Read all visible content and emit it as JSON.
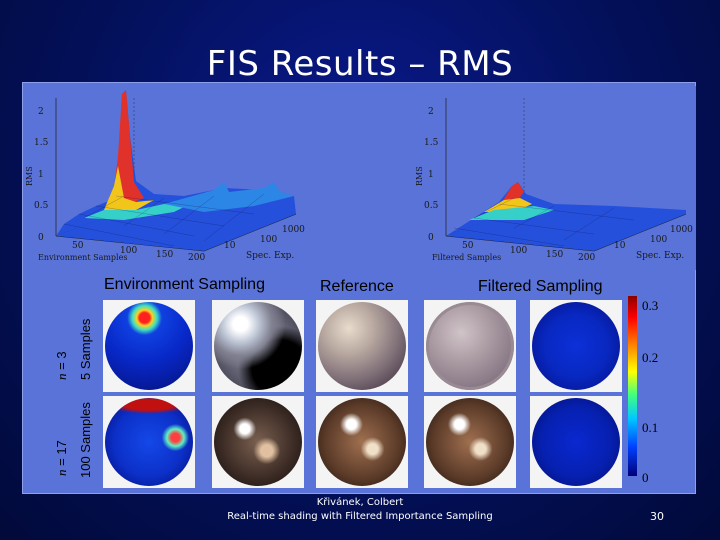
{
  "slide": {
    "title": "FIS Results – RMS",
    "page_number": "30",
    "footer_authors": "Křivánek, Colbert",
    "footer_paper": "Real-time shading with Filtered Importance Sampling"
  },
  "plots": {
    "left": {
      "zlabel": "RMS",
      "z_ticks": [
        "0",
        "0.5",
        "1",
        "1.5",
        "2"
      ],
      "x_label": "Environment Samples",
      "x_ticks": [
        "50",
        "100",
        "150",
        "200"
      ],
      "y_label": "Spec. Exp.",
      "y_ticks": [
        "10",
        "100",
        "1000"
      ]
    },
    "right": {
      "zlabel": "RMS",
      "z_ticks": [
        "0",
        "0.5",
        "1",
        "1.5",
        "2"
      ],
      "x_label": "Filtered Samples",
      "x_ticks": [
        "50",
        "100",
        "150",
        "200"
      ],
      "y_label": "Spec. Exp.",
      "y_ticks": [
        "10",
        "100",
        "1000"
      ]
    }
  },
  "columns": {
    "env": "Environment Sampling",
    "ref": "Reference",
    "filtered": "Filtered Sampling"
  },
  "rows": {
    "row1_n": "n",
    "row1_eq": " = 3",
    "row1_samples": "5 Samples",
    "row2_n": "n",
    "row2_eq": " = 17",
    "row2_samples": "100 Samples"
  },
  "colorbar": {
    "ticks": [
      "0.3",
      "0.2",
      "0.1",
      "0"
    ]
  },
  "colors": {
    "panel": "#5a73d8",
    "slide_bg": "#03105a"
  }
}
